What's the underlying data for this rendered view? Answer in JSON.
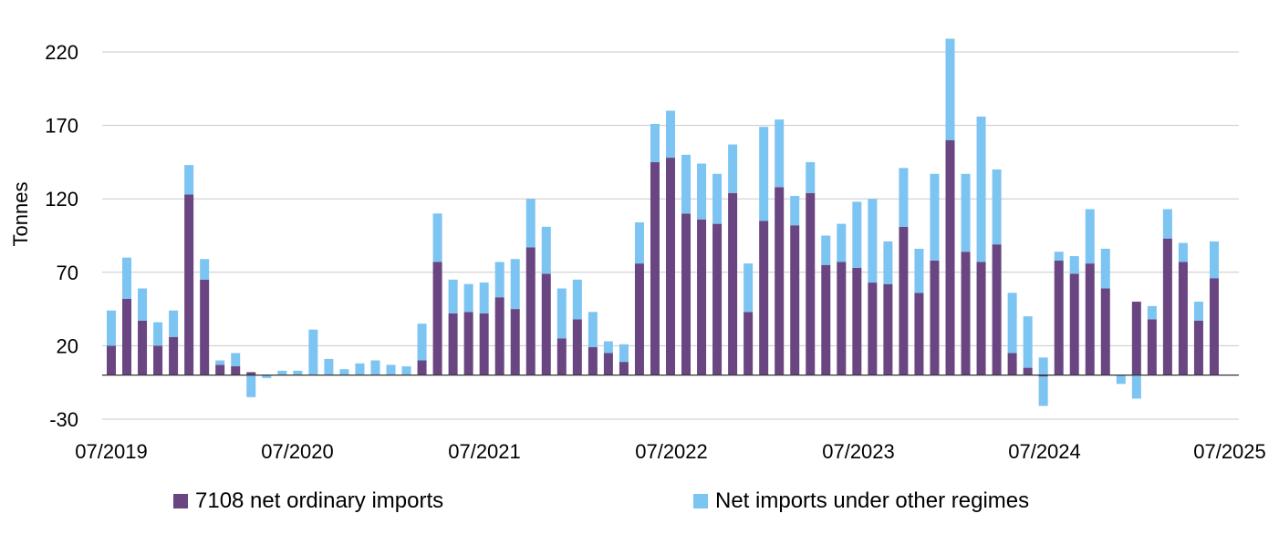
{
  "chart_data": {
    "type": "bar",
    "stacked": true,
    "ylabel": "Tonnes",
    "ylim": [
      -30,
      230
    ],
    "yticks": [
      -30,
      20,
      70,
      120,
      170,
      220
    ],
    "xtick_labels": [
      "07/2019",
      "07/2020",
      "07/2021",
      "07/2022",
      "07/2023",
      "07/2024",
      "07/2025"
    ],
    "grid": "horizontal",
    "legend_position": "bottom",
    "categories": [
      "07/2019",
      "08/2019",
      "09/2019",
      "10/2019",
      "11/2019",
      "12/2019",
      "01/2020",
      "02/2020",
      "03/2020",
      "04/2020",
      "05/2020",
      "06/2020",
      "07/2020",
      "08/2020",
      "09/2020",
      "10/2020",
      "11/2020",
      "12/2020",
      "01/2021",
      "02/2021",
      "03/2021",
      "04/2021",
      "05/2021",
      "06/2021",
      "07/2021",
      "08/2021",
      "09/2021",
      "10/2021",
      "11/2021",
      "12/2021",
      "01/2022",
      "02/2022",
      "03/2022",
      "04/2022",
      "05/2022",
      "06/2022",
      "07/2022",
      "08/2022",
      "09/2022",
      "10/2022",
      "11/2022",
      "12/2022",
      "01/2023",
      "02/2023",
      "03/2023",
      "04/2023",
      "05/2023",
      "06/2023",
      "07/2023",
      "08/2023",
      "09/2023",
      "10/2023",
      "11/2023",
      "12/2023",
      "01/2024",
      "02/2024",
      "03/2024",
      "04/2024",
      "05/2024",
      "06/2024",
      "07/2024",
      "08/2024",
      "09/2024",
      "10/2024",
      "11/2024",
      "12/2024",
      "01/2025",
      "02/2025",
      "03/2025",
      "04/2025",
      "05/2025",
      "06/2025",
      "07/2025"
    ],
    "series": [
      {
        "name": "7108 net ordinary imports",
        "color": "#694581",
        "values": [
          20,
          52,
          37,
          20,
          26,
          123,
          65,
          7,
          6,
          2,
          0,
          0,
          0,
          0,
          0,
          0,
          0,
          0,
          0,
          0,
          10,
          77,
          42,
          43,
          42,
          53,
          45,
          87,
          69,
          25,
          38,
          19,
          15,
          9,
          76,
          145,
          148,
          110,
          106,
          103,
          124,
          43,
          105,
          128,
          102,
          124,
          75,
          77,
          73,
          63,
          62,
          101,
          56,
          78,
          160,
          84,
          77,
          89,
          15,
          5,
          -1,
          78,
          69,
          76,
          59,
          0,
          50,
          38,
          93,
          77,
          37,
          66,
          0
        ]
      },
      {
        "name": "Net imports under other regimes",
        "color": "#7CC4F2",
        "values": [
          24,
          28,
          22,
          16,
          18,
          20,
          14,
          3,
          9,
          -15,
          -2,
          3,
          3,
          31,
          11,
          4,
          8,
          10,
          7,
          6,
          25,
          33,
          23,
          19,
          21,
          24,
          34,
          33,
          32,
          34,
          27,
          24,
          8,
          12,
          28,
          26,
          32,
          40,
          38,
          34,
          33,
          33,
          64,
          46,
          20,
          21,
          20,
          26,
          45,
          57,
          29,
          40,
          30,
          59,
          69,
          53,
          99,
          51,
          41,
          35,
          12,
          6,
          12,
          37,
          27,
          0,
          0,
          9,
          20,
          13,
          13,
          25,
          0
        ]
      }
    ],
    "negative_stack_extra": {
      "note_values_index": [
        9,
        60,
        65,
        66
      ],
      "values": [
        -15,
        -20,
        -6,
        -16
      ]
    }
  }
}
